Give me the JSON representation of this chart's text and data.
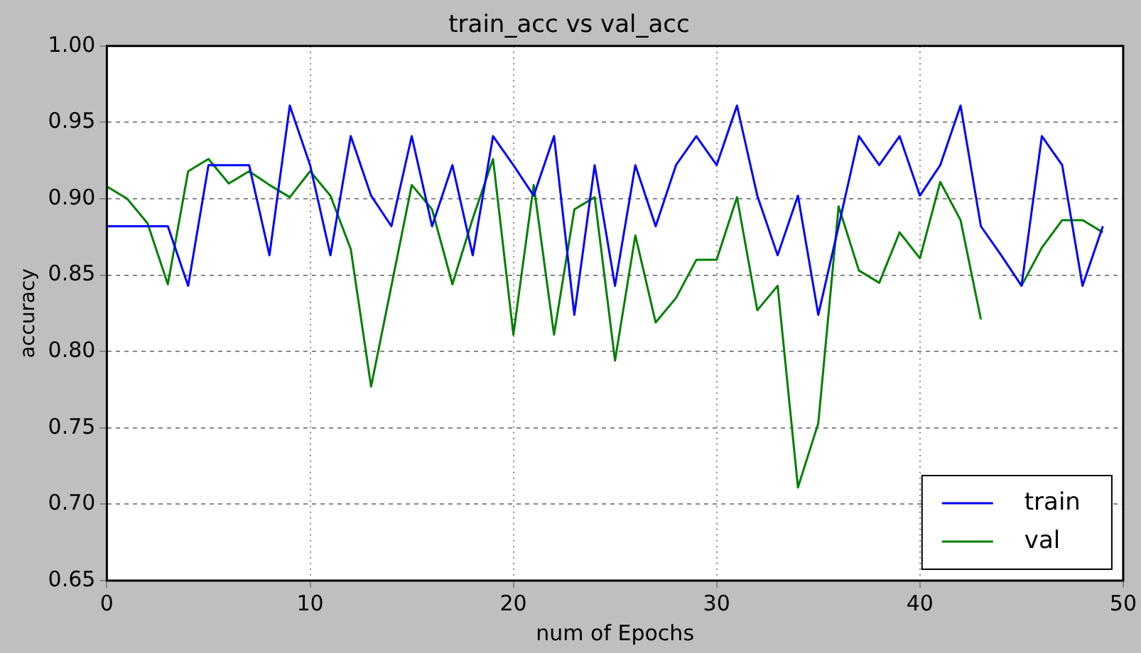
{
  "chart_data": {
    "type": "line",
    "title": "train_acc vs val_acc",
    "xlabel": "num of Epochs",
    "ylabel": "accuracy",
    "x": [
      0,
      1,
      2,
      3,
      4,
      5,
      6,
      7,
      8,
      9,
      10,
      11,
      12,
      13,
      14,
      15,
      16,
      17,
      18,
      19,
      20,
      21,
      22,
      23,
      24,
      25,
      26,
      27,
      28,
      29,
      30,
      31,
      32,
      33,
      34,
      35,
      36,
      37,
      38,
      39,
      40,
      41,
      42,
      43,
      44,
      45,
      46,
      47,
      48,
      49
    ],
    "series": [
      {
        "name": "train",
        "color": "#0000ff",
        "values": [
          0.882,
          0.882,
          0.882,
          0.882,
          0.843,
          0.922,
          0.922,
          0.922,
          0.863,
          0.961,
          0.922,
          0.863,
          0.941,
          0.902,
          0.882,
          0.941,
          0.882,
          0.922,
          0.863,
          0.941,
          0.922,
          0.902,
          0.941,
          0.824,
          0.922,
          0.843,
          0.922,
          0.882,
          0.922,
          0.941,
          0.922,
          0.961,
          0.902,
          0.863,
          0.902,
          0.824,
          0.882,
          0.941,
          0.922,
          0.941,
          0.902,
          0.922,
          0.961,
          0.882,
          0.863,
          0.843,
          0.941,
          0.922,
          0.843,
          0.882
        ]
      },
      {
        "name": "val",
        "color": "#008000",
        "values": [
          0.908,
          0.9,
          0.884,
          0.844,
          0.918,
          0.926,
          0.91,
          0.918,
          0.909,
          0.901,
          0.918,
          0.902,
          0.867,
          0.777,
          0.843,
          0.909,
          0.893,
          0.844,
          0.887,
          0.926,
          0.811,
          0.909,
          0.811,
          0.893,
          0.901,
          0.794,
          0.876,
          0.819,
          0.835,
          0.86,
          0.86,
          0.901,
          0.827,
          0.843,
          0.711,
          0.753,
          0.895,
          0.853,
          0.845,
          0.878,
          0.861,
          0.911,
          0.886,
          0.821,
          null,
          0.843,
          0.868,
          0.886,
          0.886,
          0.878
        ]
      }
    ],
    "xlim": [
      0,
      50
    ],
    "xticks": [
      0,
      10,
      20,
      30,
      40,
      50
    ],
    "ylim": [
      0.65,
      1.0
    ],
    "yticks": [
      0.65,
      {
        "value": 0.7,
        "label": "0.70"
      },
      0.75,
      {
        "value": 0.8,
        "label": "0.80"
      },
      0.85,
      {
        "value": 0.9,
        "label": "0.90"
      },
      0.95,
      {
        "value": 1.0,
        "label": "1.00"
      }
    ],
    "grid": true,
    "legend": "bottom right",
    "line_style": "solid",
    "marker": "none"
  }
}
